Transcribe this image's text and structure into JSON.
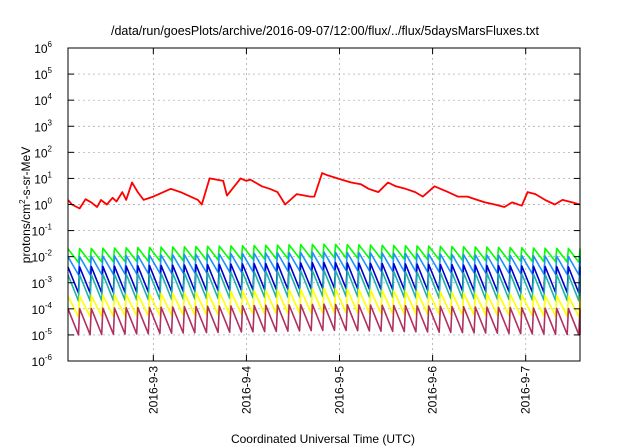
{
  "chart_data": {
    "type": "line",
    "title": "/data/run/goesPlots/archive/2016-09-07/12:00/flux/../flux/5daysMarsFluxes.txt",
    "xlabel": "Coordinated Universal Time (UTC)",
    "ylabel": "protons/cm²-s-sr-MeV",
    "ylabel_parts": {
      "pre": "protons/cm",
      "sup": "2",
      "post": "-s-sr-MeV"
    },
    "y_scale": "log",
    "ylim": [
      1e-06,
      1000000.0
    ],
    "xlim": [
      "2016-09-02 02:00",
      "2016-09-07 14:00"
    ],
    "grid": true,
    "legend": "none",
    "y_ticks": [
      {
        "base": "10",
        "exp": "-6"
      },
      {
        "base": "10",
        "exp": "-5"
      },
      {
        "base": "10",
        "exp": "-4"
      },
      {
        "base": "10",
        "exp": "-3"
      },
      {
        "base": "10",
        "exp": "-2"
      },
      {
        "base": "10",
        "exp": "-1"
      },
      {
        "base": "10",
        "exp": "0"
      },
      {
        "base": "10",
        "exp": "1"
      },
      {
        "base": "10",
        "exp": "2"
      },
      {
        "base": "10",
        "exp": "3"
      },
      {
        "base": "10",
        "exp": "4"
      },
      {
        "base": "10",
        "exp": "5"
      },
      {
        "base": "10",
        "exp": "6"
      }
    ],
    "x_ticks": [
      "2016-9-3",
      "2016-9-4",
      "2016-9-5",
      "2016-9-6",
      "2016-9-7"
    ],
    "series": [
      {
        "color": "#ff0000",
        "x": [
          "2016-09-02 02:00",
          "2016-09-02 03:00",
          "2016-09-02 05:00",
          "2016-09-02 06:30",
          "2016-09-02 08:00",
          "2016-09-02 09:30",
          "2016-09-02 10:30",
          "2016-09-02 12:00",
          "2016-09-02 13:30",
          "2016-09-02 14:30",
          "2016-09-02 16:00",
          "2016-09-02 17:00",
          "2016-09-02 18:30",
          "2016-09-02 20:00",
          "2016-09-02 21:30",
          "2016-09-03 00:00",
          "2016-09-03 04:30",
          "2016-09-03 07:00",
          "2016-09-03 11:30",
          "2016-09-03 12:30",
          "2016-09-03 14:30",
          "2016-09-03 18:00",
          "2016-09-03 19:00",
          "2016-09-03 22:30",
          "2016-09-04 00:00",
          "2016-09-04 01:00",
          "2016-09-04 04:00",
          "2016-09-04 06:00",
          "2016-09-04 08:00",
          "2016-09-04 10:00",
          "2016-09-04 13:00",
          "2016-09-04 16:30",
          "2016-09-04 17:30",
          "2016-09-04 19:30",
          "2016-09-04 21:00",
          "2016-09-05 00:30",
          "2016-09-05 03:00",
          "2016-09-05 05:30",
          "2016-09-05 07:30",
          "2016-09-05 10:00",
          "2016-09-05 12:30",
          "2016-09-05 14:30",
          "2016-09-05 17:00",
          "2016-09-05 19:30",
          "2016-09-05 21:30",
          "2016-09-06 00:30",
          "2016-09-06 04:00",
          "2016-09-06 06:30",
          "2016-09-06 09:00",
          "2016-09-06 11:30",
          "2016-09-06 13:30",
          "2016-09-06 16:00",
          "2016-09-06 18:30",
          "2016-09-06 20:30",
          "2016-09-06 23:00",
          "2016-09-07 00:30",
          "2016-09-07 02:30",
          "2016-09-07 05:00",
          "2016-09-07 07:30",
          "2016-09-07 09:30",
          "2016-09-07 12:00",
          "2016-09-07 14:00"
        ],
        "y": [
          1.5,
          1.0,
          0.7,
          1.6,
          1.2,
          0.8,
          1.5,
          1.0,
          1.8,
          1.3,
          3.0,
          1.5,
          7.0,
          3.0,
          1.5,
          2.0,
          4.0,
          3.0,
          1.5,
          1.0,
          10,
          8,
          2.2,
          10,
          8,
          9,
          5,
          4,
          3,
          1,
          2.5,
          2,
          2,
          16,
          13,
          9,
          7,
          6,
          4,
          3,
          7,
          5,
          4,
          3,
          2,
          5,
          3,
          2,
          2,
          1.5,
          1.2,
          1.0,
          0.8,
          1.2,
          0.9,
          3,
          2.5,
          1.5,
          1.0,
          1.5,
          1.2,
          1.0
        ]
      },
      {
        "color": "#00ff00",
        "x": [
          "2016-09-02 02:00",
          "2016-09-07 14:00"
        ],
        "y": [
          0.02,
          0.02
        ],
        "sawtooth": {
          "period_h": 3,
          "high": 0.02,
          "low": 0.006,
          "mid_high": 0.03,
          "mid_low": 0.009
        }
      },
      {
        "color": "#1e90ff",
        "x": [
          "2016-09-02 02:00",
          "2016-09-07 14:00"
        ],
        "y": [
          0.01,
          0.01
        ],
        "sawtooth": {
          "period_h": 3,
          "high": 0.01,
          "low": 0.002,
          "mid_high": 0.015,
          "mid_low": 0.003
        }
      },
      {
        "color": "#0000cd",
        "x": [
          "2016-09-02 02:00",
          "2016-09-07 14:00"
        ],
        "y": [
          0.004,
          0.004
        ],
        "sawtooth": {
          "period_h": 3,
          "high": 0.004,
          "low": 0.0004,
          "mid_high": 0.006,
          "mid_low": 0.0006
        }
      },
      {
        "color": "#20b2aa",
        "x": [
          "2016-09-02 02:00",
          "2016-09-07 14:00"
        ],
        "y": [
          0.002,
          0.002
        ],
        "sawtooth": {
          "period_h": 3,
          "high": 0.002,
          "low": 0.0002,
          "mid_high": 0.003,
          "mid_low": 0.0003
        }
      },
      {
        "color": "#ffff00",
        "x": [
          "2016-09-02 02:00",
          "2016-09-07 14:00"
        ],
        "y": [
          0.0003,
          0.0003
        ],
        "sawtooth": {
          "period_h": 3,
          "high": 0.0003,
          "low": 5e-05,
          "mid_high": 0.0006,
          "mid_low": 7e-05
        }
      },
      {
        "color": "#b03060",
        "x": [
          "2016-09-02 02:00",
          "2016-09-07 14:00"
        ],
        "y": [
          0.0001,
          0.0001
        ],
        "sawtooth": {
          "period_h": 3,
          "high": 0.0001,
          "low": 1e-05,
          "mid_high": 0.00015,
          "mid_low": 1.5e-05
        }
      }
    ]
  }
}
